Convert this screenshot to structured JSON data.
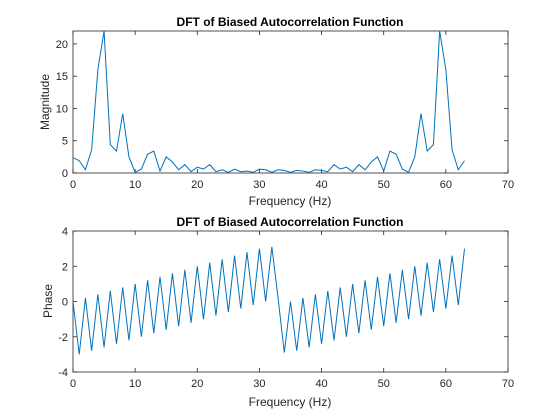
{
  "chart_data": [
    {
      "type": "line",
      "title": "DFT of Biased Autocorrelation Function",
      "xlabel": "Frequency (Hz)",
      "ylabel": "Magnitude",
      "xlim": [
        0,
        70
      ],
      "ylim": [
        0,
        22
      ],
      "xticks": [
        0,
        10,
        20,
        30,
        40,
        50,
        60,
        70
      ],
      "yticks": [
        0,
        5,
        10,
        15,
        20
      ],
      "grid": false,
      "series_color": "#0072BD",
      "x": [
        0,
        1,
        2,
        3,
        4,
        5,
        6,
        7,
        8,
        9,
        10,
        11,
        12,
        13,
        14,
        15,
        16,
        17,
        18,
        19,
        20,
        21,
        22,
        23,
        24,
        25,
        26,
        27,
        28,
        29,
        30,
        31,
        32,
        33,
        34,
        35,
        36,
        37,
        38,
        39,
        40,
        41,
        42,
        43,
        44,
        45,
        46,
        47,
        48,
        49,
        50,
        51,
        52,
        53,
        54,
        55,
        56,
        57,
        58,
        59,
        60,
        61,
        62,
        63
      ],
      "values": [
        2.4,
        1.9,
        0.5,
        3.6,
        16.0,
        22.2,
        4.4,
        3.4,
        9.2,
        2.5,
        0.1,
        0.6,
        2.9,
        3.4,
        0.3,
        2.5,
        1.7,
        0.5,
        1.3,
        0.2,
        0.9,
        0.6,
        1.3,
        0.2,
        0.5,
        0.1,
        0.6,
        0.2,
        0.3,
        0.1,
        0.6,
        0.5,
        0.1,
        0.5,
        0.4,
        0.1,
        0.4,
        0.3,
        0.1,
        0.5,
        0.4,
        0.2,
        1.3,
        0.6,
        0.9,
        0.2,
        1.3,
        0.5,
        1.7,
        2.5,
        0.3,
        3.4,
        2.9,
        0.6,
        0.1,
        2.5,
        9.2,
        3.4,
        4.4,
        22.2,
        16.0,
        3.6,
        0.5,
        1.9
      ]
    },
    {
      "type": "line",
      "title": "DFT of Biased Autocorrelation Function",
      "xlabel": "Frequency (Hz)",
      "ylabel": "Phase",
      "xlim": [
        0,
        70
      ],
      "ylim": [
        -4,
        4
      ],
      "xticks": [
        0,
        10,
        20,
        30,
        40,
        50,
        60,
        70
      ],
      "yticks": [
        -4,
        -2,
        0,
        2,
        4
      ],
      "grid": false,
      "series_color": "#0072BD",
      "x": [
        0,
        1,
        2,
        3,
        4,
        5,
        6,
        7,
        8,
        9,
        10,
        11,
        12,
        13,
        14,
        15,
        16,
        17,
        18,
        19,
        20,
        21,
        22,
        23,
        24,
        25,
        26,
        27,
        28,
        29,
        30,
        31,
        32,
        33,
        34,
        35,
        36,
        37,
        38,
        39,
        40,
        41,
        42,
        43,
        44,
        45,
        46,
        47,
        48,
        49,
        50,
        51,
        52,
        53,
        54,
        55,
        56,
        57,
        58,
        59,
        60,
        61,
        62,
        63
      ],
      "values": [
        0.0,
        -3.0,
        0.2,
        -2.8,
        0.4,
        -2.6,
        0.6,
        -2.4,
        0.8,
        -2.2,
        1.0,
        -2.0,
        1.2,
        -1.8,
        1.4,
        -1.6,
        1.6,
        -1.4,
        1.8,
        -1.2,
        2.0,
        -1.0,
        2.2,
        -0.8,
        2.4,
        -0.6,
        2.6,
        -0.4,
        2.8,
        -0.2,
        3.0,
        0.0,
        3.1,
        0.2,
        -2.9,
        0.0,
        -2.8,
        0.2,
        -2.6,
        0.4,
        -2.4,
        0.6,
        -2.2,
        0.8,
        -2.0,
        1.0,
        -1.8,
        1.2,
        -1.6,
        1.4,
        -1.4,
        1.6,
        -1.2,
        1.8,
        -1.0,
        2.0,
        -0.8,
        2.2,
        -0.6,
        2.4,
        -0.4,
        2.6,
        -0.2,
        3.0
      ]
    }
  ]
}
